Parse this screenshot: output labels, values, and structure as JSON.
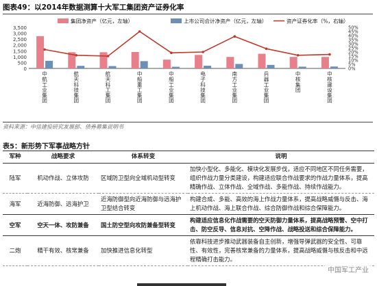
{
  "figure": {
    "title": "图表49：以2014年数据测算十大军工集团资产证券化率",
    "source": "资料来源：中信建投研究发展部、债券募集说明书"
  },
  "chart_data": {
    "type": "bar",
    "categories": [
      "中航工业集团",
      "航天科技集团",
      "航天科工集团",
      "中船重工集团",
      "中船工业集团",
      "电子科技集团",
      "南方工业集团",
      "兵器工业集团",
      "中核集团",
      "中核建设集团"
    ],
    "series": [
      {
        "name": "集团净资产（亿元，左轴）",
        "type": "bar",
        "axis": "left",
        "color": "#e8808b",
        "values": [
          2750,
          1380,
          1380,
          1400,
          750,
          1150,
          980,
          1250,
          980,
          980
        ]
      },
      {
        "name": "上市公司合计净资产（亿元，左轴）",
        "type": "bar",
        "axis": "left",
        "color": "#6b8fb5",
        "values": [
          650,
          220,
          200,
          620,
          140,
          230,
          380,
          300,
          150,
          160
        ]
      },
      {
        "name": "资产证券化率（%，右轴）",
        "type": "line",
        "axis": "right",
        "color": "#c0392b",
        "values": [
          23,
          16,
          15,
          45,
          19,
          20,
          39,
          24,
          16,
          17
        ]
      }
    ],
    "y_left": {
      "ticks": [
        "0",
        "500",
        "1,000",
        "1,500",
        "2,000",
        "2,500",
        "3,000",
        "3,500"
      ],
      "range": [
        0,
        3500
      ]
    },
    "y_right": {
      "ticks": [
        "0%",
        "5%",
        "10%",
        "15%",
        "20%",
        "25%",
        "30%",
        "35%",
        "40%",
        "45%",
        "50%"
      ],
      "range": [
        0,
        50
      ]
    },
    "legend_position": "top",
    "grid": false
  },
  "table": {
    "title": "表5：新形势下军事战略方针",
    "headers": [
      "军种",
      "战略要求",
      "体系转变",
      "说明"
    ],
    "rows": [
      {
        "branch": "陆军",
        "requirement": "机动作战、立体攻防",
        "shift": "区域防卫型向全域机动型转变",
        "note": "加快小型化、多能化、模块化发展步伐，适应不同地区不同任务需要，组织作战力量分类建设，构建适应联合作战要求的作战力量体系，提高精确作战、立体作战、全域作战、多能作战、持续作战能力。",
        "highlight": false
      },
      {
        "branch": "海军",
        "requirement": "近海防御、远海护卫",
        "shift": "近海防御型向近海防御与远海护卫型结合转变",
        "note": "构建合成、多能、高效的海上作战力量体系，提高战略威慑与反击、海上机动作战、海上联合作战、综合防御作战和综合保障能力。",
        "highlight": false
      },
      {
        "branch": "空军",
        "requirement": "空天一体、攻防兼备",
        "shift": "国土防空型向攻防兼备型转变",
        "note": "构建适应信息化作战需要的空天防御力量体系，提高战略预警、空中打击、防空反导、信息对抗、空降作战、战略投送和综合保障能力。",
        "highlight": true
      },
      {
        "branch": "二炮",
        "requirement": "精干有效、核常兼备",
        "shift": "加快推进信息化转型",
        "note": "依靠科技进步推动武器装备自主创新，增强导弹武器的安全性、可靠性、有效性，完善核常兼备的力量体系，提高战略威慑与核反击和中远程精确打击能力。",
        "highlight": false
      }
    ]
  },
  "watermark": "中国军工产业"
}
